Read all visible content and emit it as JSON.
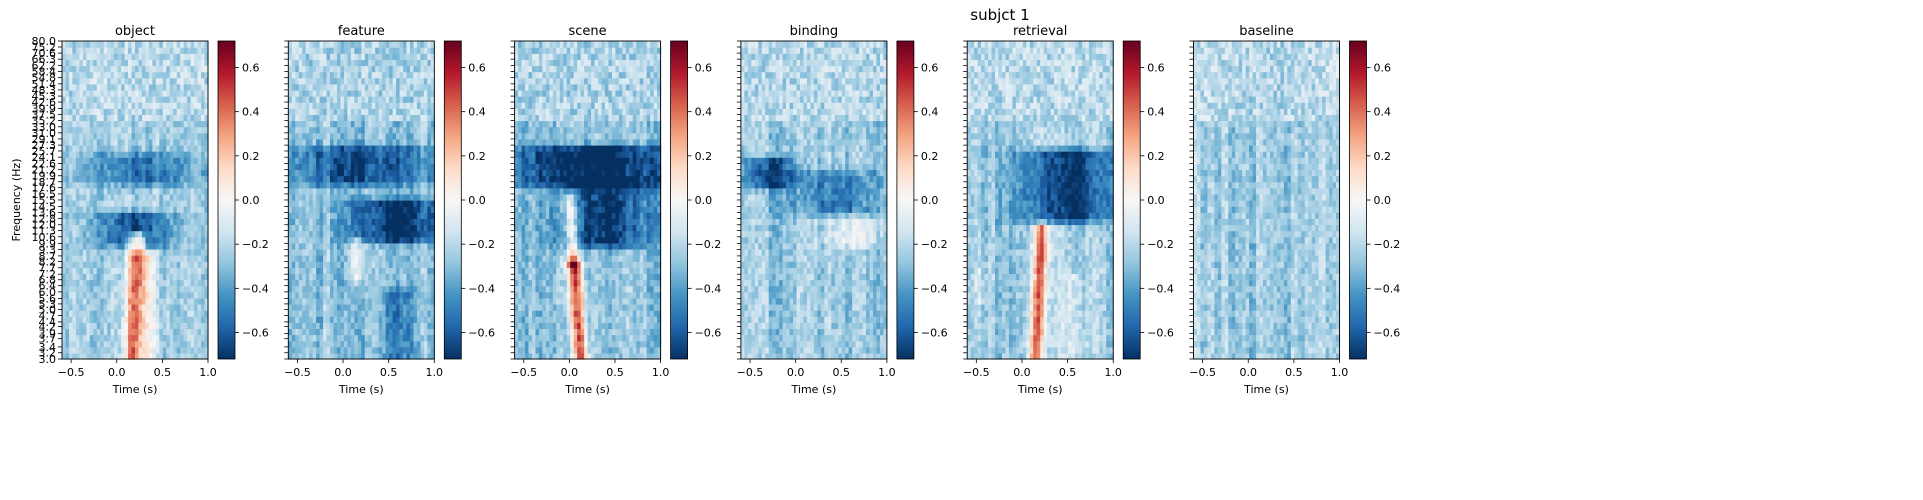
{
  "figure": {
    "suptitle": "subjct 1"
  },
  "chart_data": {
    "type": "heatmap",
    "xlabel": "Time (s)",
    "ylabel": "Frequency (Hz)",
    "xlim": [
      -0.6,
      1.0
    ],
    "xticks": [
      -0.5,
      0.0,
      0.5,
      1.0
    ],
    "xtick_labels": [
      "−0.5",
      "0.0",
      "0.5",
      "1.0"
    ],
    "ylim": [
      3.0,
      80.0
    ],
    "yscale": "log",
    "yticks": [
      3.0,
      3.2,
      3.4,
      3.7,
      3.9,
      4.2,
      4.4,
      4.7,
      5.0,
      5.3,
      5.6,
      6.0,
      6.4,
      6.8,
      7.2,
      7.7,
      8.2,
      8.7,
      9.3,
      9.9,
      10.6,
      11.3,
      12.0,
      12.8,
      13.6,
      14.5,
      15.5,
      16.5,
      17.6,
      18.7,
      19.9,
      21.2,
      22.6,
      24.1,
      25.7,
      27.3,
      29.1,
      31.0,
      33.0,
      35.2,
      37.5,
      39.9,
      42.6,
      45.3,
      48.3,
      51.4,
      54.8,
      58.4,
      62.2,
      66.3,
      70.6,
      75.2,
      80.0
    ],
    "colormap": "RdBu_r",
    "clim": [
      -0.72,
      0.72
    ],
    "colorbar_ticks": [
      0.6,
      0.4,
      0.2,
      0.0,
      -0.2,
      -0.4,
      -0.6
    ],
    "colorbar_tick_labels": [
      "0.6",
      "0.4",
      "0.2",
      "0.0",
      "−0.2",
      "−0.4",
      "−0.6"
    ],
    "panels": [
      {
        "title": "object",
        "baseline": -0.25,
        "features": [
          {
            "t0": 0.18,
            "t1": 0.22,
            "f0": 3.0,
            "f1": 10.5,
            "amp": 0.72,
            "width": 0.09
          },
          {
            "t0": 0.35,
            "t1": 0.35,
            "f0": 3.0,
            "f1": 8.5,
            "amp": 0.3,
            "width": 0.07
          },
          {
            "t0": 0.2,
            "t1": 0.2,
            "f0": 10.0,
            "f1": 13.0,
            "amp": -0.4,
            "width": 0.4
          },
          {
            "t0": 0.3,
            "t1": 0.3,
            "f0": 19.0,
            "f1": 24.0,
            "amp": -0.28,
            "width": 0.6
          }
        ]
      },
      {
        "title": "feature",
        "baseline": -0.28,
        "features": [
          {
            "t0": 0.15,
            "t1": 0.15,
            "f0": 7.0,
            "f1": 10.0,
            "amp": 0.3,
            "width": 0.07
          },
          {
            "t0": 0.6,
            "t1": 0.6,
            "f0": 10.5,
            "f1": 15.0,
            "amp": -0.45,
            "width": 0.5
          },
          {
            "t0": 0.2,
            "t1": 0.2,
            "f0": 19.0,
            "f1": 26.0,
            "amp": -0.35,
            "width": 0.8
          },
          {
            "t0": 0.6,
            "t1": 0.6,
            "f0": 3.0,
            "f1": 6.0,
            "amp": -0.2,
            "width": 0.2
          }
        ]
      },
      {
        "title": "scene",
        "baseline": -0.28,
        "features": [
          {
            "t0": 0.13,
            "t1": 0.05,
            "f0": 3.0,
            "f1": 8.0,
            "amp": 0.72,
            "width": 0.08
          },
          {
            "t0": 0.05,
            "t1": 0.0,
            "f0": 8.0,
            "f1": 15.5,
            "amp": 0.45,
            "width": 0.07
          },
          {
            "t0": 0.4,
            "t1": 0.4,
            "f0": 10.0,
            "f1": 18.0,
            "amp": -0.42,
            "width": 0.5
          },
          {
            "t0": 0.3,
            "t1": 0.3,
            "f0": 19.0,
            "f1": 26.0,
            "amp": -0.5,
            "width": 0.9
          }
        ]
      },
      {
        "title": "binding",
        "baseline": -0.26,
        "features": [
          {
            "t0": 0.65,
            "t1": 0.65,
            "f0": 10.0,
            "f1": 12.5,
            "amp": 0.22,
            "width": 0.28
          },
          {
            "t0": -0.3,
            "t1": -0.3,
            "f0": 18.5,
            "f1": 23.0,
            "amp": -0.38,
            "width": 0.3
          },
          {
            "t0": 0.4,
            "t1": 0.4,
            "f0": 14.0,
            "f1": 20.0,
            "amp": -0.25,
            "width": 0.5
          }
        ]
      },
      {
        "title": "retrieval",
        "baseline": -0.25,
        "features": [
          {
            "t0": 0.15,
            "t1": 0.22,
            "f0": 3.0,
            "f1": 11.5,
            "amp": 0.62,
            "width": 0.08
          },
          {
            "t0": 0.55,
            "t1": 0.55,
            "f0": 3.0,
            "f1": 7.0,
            "amp": 0.15,
            "width": 0.1
          },
          {
            "t0": 0.5,
            "t1": 0.5,
            "f0": 13.0,
            "f1": 25.0,
            "amp": -0.48,
            "width": 0.5
          },
          {
            "t0": -0.45,
            "t1": -0.45,
            "f0": 5.5,
            "f1": 7.5,
            "amp": 0.1,
            "width": 0.08
          }
        ]
      },
      {
        "title": "baseline",
        "baseline": -0.22,
        "features": [
          {
            "t0": 0.2,
            "t1": 0.2,
            "f0": 3.0,
            "f1": 80.0,
            "amp": -0.05,
            "width": 0.6
          }
        ]
      }
    ]
  }
}
